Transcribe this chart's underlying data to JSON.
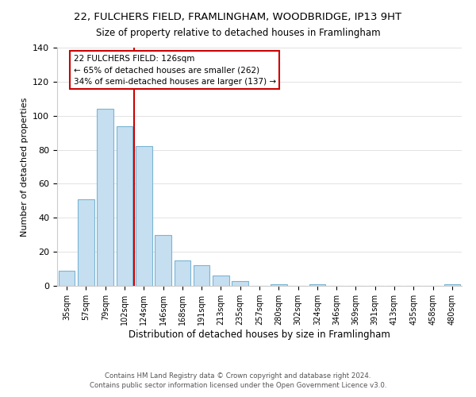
{
  "title": "22, FULCHERS FIELD, FRAMLINGHAM, WOODBRIDGE, IP13 9HT",
  "subtitle": "Size of property relative to detached houses in Framlingham",
  "xlabel": "Distribution of detached houses by size in Framlingham",
  "ylabel": "Number of detached properties",
  "bar_labels": [
    "35sqm",
    "57sqm",
    "79sqm",
    "102sqm",
    "124sqm",
    "146sqm",
    "168sqm",
    "191sqm",
    "213sqm",
    "235sqm",
    "257sqm",
    "280sqm",
    "302sqm",
    "324sqm",
    "346sqm",
    "369sqm",
    "391sqm",
    "413sqm",
    "435sqm",
    "458sqm",
    "480sqm"
  ],
  "bar_values": [
    9,
    51,
    104,
    94,
    82,
    30,
    15,
    12,
    6,
    3,
    0,
    1,
    0,
    1,
    0,
    0,
    0,
    0,
    0,
    0,
    1
  ],
  "bar_color": "#c5dff0",
  "bar_edge_color": "#7ab4d4",
  "vline_color": "#cc0000",
  "annotation_title": "22 FULCHERS FIELD: 126sqm",
  "annotation_line1": "← 65% of detached houses are smaller (262)",
  "annotation_line2": "34% of semi-detached houses are larger (137) →",
  "annotation_box_color": "#ffffff",
  "annotation_box_edge": "#cc0000",
  "footer_line1": "Contains HM Land Registry data © Crown copyright and database right 2024.",
  "footer_line2": "Contains public sector information licensed under the Open Government Licence v3.0.",
  "ylim": [
    0,
    140
  ],
  "figsize": [
    6.0,
    5.0
  ],
  "dpi": 100
}
